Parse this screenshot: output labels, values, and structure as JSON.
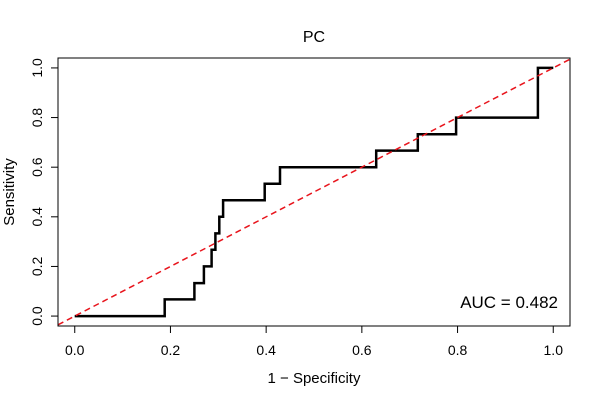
{
  "chart_data": {
    "type": "line",
    "title": "PC",
    "xlabel": "1 − Specificity",
    "ylabel": "Sensitivity",
    "xlim": [
      -0.035,
      1.035
    ],
    "ylim": [
      -0.04,
      1.04
    ],
    "x_ticks": [
      0.0,
      0.2,
      0.4,
      0.6,
      0.8,
      1.0
    ],
    "x_tick_labels": [
      "0.0",
      "0.2",
      "0.4",
      "0.6",
      "0.8",
      "1.0"
    ],
    "y_ticks": [
      0.0,
      0.2,
      0.4,
      0.6,
      0.8,
      1.0
    ],
    "y_tick_labels": [
      "0.0",
      "0.2",
      "0.4",
      "0.6",
      "0.8",
      "1.0"
    ],
    "grid": false,
    "series": [
      {
        "name": "ROC",
        "color": "#000000",
        "style": "solid",
        "x": [
          0.0,
          0.188,
          0.188,
          0.25,
          0.25,
          0.27,
          0.27,
          0.286,
          0.286,
          0.294,
          0.294,
          0.302,
          0.302,
          0.31,
          0.31,
          0.397,
          0.397,
          0.429,
          0.429,
          0.63,
          0.63,
          0.717,
          0.717,
          0.797,
          0.797,
          0.968,
          0.968,
          1.0
        ],
        "y": [
          0.0,
          0.0,
          0.067,
          0.067,
          0.133,
          0.133,
          0.2,
          0.2,
          0.267,
          0.267,
          0.333,
          0.333,
          0.4,
          0.4,
          0.467,
          0.467,
          0.533,
          0.533,
          0.6,
          0.6,
          0.667,
          0.667,
          0.733,
          0.733,
          0.8,
          0.8,
          1.0,
          1.0
        ]
      },
      {
        "name": "Reference",
        "color": "#e8141c",
        "style": "dashed",
        "x": [
          -0.035,
          1.035
        ],
        "y": [
          -0.035,
          1.035
        ]
      }
    ],
    "annotations": [
      {
        "text": "AUC = 0.482"
      }
    ]
  }
}
